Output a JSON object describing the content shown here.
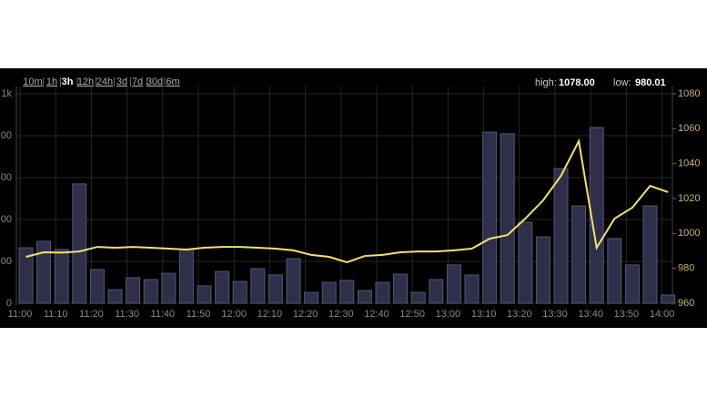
{
  "nav": {
    "items": [
      "10m",
      "1h",
      "3h",
      "12h",
      "24h",
      "3d",
      "7d",
      "30d",
      "6m"
    ],
    "selected": 2
  },
  "stats": [
    {
      "label": "high:",
      "value": "1078.00"
    },
    {
      "label": "low:",
      "value": "980.01"
    }
  ],
  "chart_data": {
    "type": "bar",
    "categories": [
      "11:00",
      null,
      "11:10",
      null,
      "11:20",
      null,
      "11:30",
      null,
      "11:40",
      null,
      "11:50",
      null,
      "12:00",
      null,
      "12:10",
      null,
      "12:20",
      null,
      "12:30",
      null,
      "12:40",
      null,
      "12:50",
      null,
      "13:00",
      null,
      "13:10",
      null,
      "13:20",
      null,
      "13:30",
      null,
      "13:40",
      null,
      "13:50",
      null,
      "14:00"
    ],
    "series": [
      {
        "type": "bar",
        "color": "#2f2f4a",
        "values": [
          265,
          296,
          257,
          570,
          161,
          65,
          122,
          113,
          143,
          257,
          83,
          152,
          104,
          165,
          135,
          213,
          52,
          100,
          109,
          61,
          100,
          139,
          52,
          113,
          183,
          135,
          817,
          809,
          387,
          317,
          643,
          465,
          839,
          309,
          183,
          465,
          39
        ]
      },
      {
        "type": "line",
        "axis": "y2",
        "color": "#f2e36a",
        "values": [
          986.6,
          989.2,
          989,
          989.7,
          992.3,
          991.8,
          992.3,
          991.8,
          991.3,
          990.8,
          991.8,
          992.3,
          992.3,
          991.8,
          991.3,
          990.3,
          987.7,
          986.6,
          983.5,
          987.1,
          987.7,
          989.2,
          989.7,
          989.7,
          990.3,
          991.3,
          997,
          999.1,
          1008.5,
          1019,
          1033,
          1052.9,
          991.8,
          1008.5,
          1014.8,
          1027.3,
          1023.7
        ]
      }
    ],
    "ylim": [
      0,
      1000
    ],
    "yticks": [
      0,
      {
        "value": 200,
        "label": "00"
      },
      {
        "value": 400,
        "label": "00"
      },
      {
        "value": 600,
        "label": "00"
      },
      {
        "value": 800,
        "label": "00"
      },
      {
        "value": 1000,
        "label": "1k"
      }
    ],
    "y2lim": [
      960,
      1080
    ],
    "y2ticks": [
      960,
      980,
      1000,
      1020,
      1040,
      1060,
      1080
    ],
    "grid": true
  }
}
